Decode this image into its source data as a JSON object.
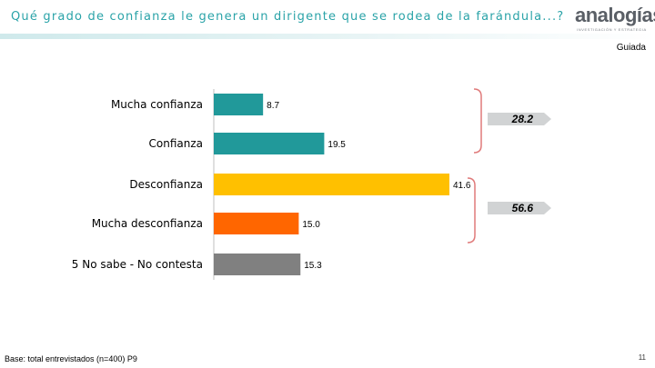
{
  "header": {
    "title": "Qué grado de confianza le genera un dirigente que se rodea de la farándula...?",
    "logo_text": "analogías",
    "logo_tagline": "INVESTIGACIÓN Y ESTRATEGIA"
  },
  "tag": "Guiada",
  "footer": {
    "note": "Base: total entrevistados (n=400) P9",
    "page_number": "11"
  },
  "colors": {
    "teal": "#21999a",
    "yellow": "#ffc000",
    "orange": "#ff6600",
    "gray": "#808080",
    "bracket": "#e07a7a",
    "badge_fill": "#d1d3d4"
  },
  "chart_data": {
    "type": "bar",
    "orientation": "horizontal",
    "categories": [
      "Mucha confianza",
      "Confianza",
      "Desconfianza",
      "Mucha desconfianza",
      "5 No sabe -  No contesta"
    ],
    "values": [
      8.7,
      19.5,
      41.6,
      15.0,
      15.3
    ],
    "value_labels": [
      "8.7",
      "19.5",
      "41.6",
      "15.0",
      "15.3"
    ],
    "bar_colors": [
      "#21999a",
      "#21999a",
      "#ffc000",
      "#ff6600",
      "#808080"
    ],
    "xlim": [
      0,
      41.6
    ],
    "groups": [
      {
        "label": "28.2",
        "from_index": 0,
        "to_index": 1
      },
      {
        "label": "56.6",
        "from_index": 2,
        "to_index": 3
      }
    ],
    "title": "",
    "xlabel": "",
    "ylabel": "",
    "grid": false,
    "legend": "none"
  }
}
